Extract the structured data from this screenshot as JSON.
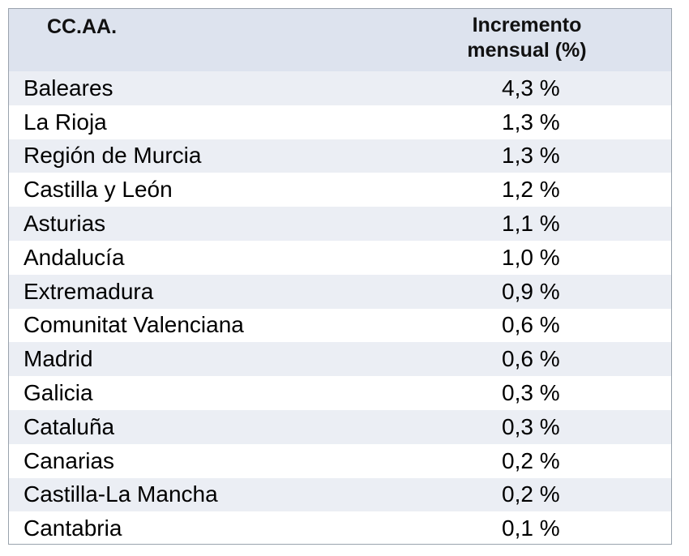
{
  "chart_data": {
    "type": "table",
    "columns": [
      "CC.AA.",
      "Incremento mensual (%)"
    ],
    "header": {
      "region_label": "CC.AA.",
      "value_label_line1": "Incremento",
      "value_label_line2": "mensual (%)"
    },
    "rows": [
      {
        "region": "Baleares",
        "value_text": "4,3 %",
        "value": 4.3
      },
      {
        "region": "La Rioja",
        "value_text": "1,3 %",
        "value": 1.3
      },
      {
        "region": "Región de Murcia",
        "value_text": "1,3 %",
        "value": 1.3
      },
      {
        "region": "Castilla y León",
        "value_text": "1,2 %",
        "value": 1.2
      },
      {
        "region": "Asturias",
        "value_text": "1,1 %",
        "value": 1.1
      },
      {
        "region": "Andalucía",
        "value_text": "1,0 %",
        "value": 1.0
      },
      {
        "region": "Extremadura",
        "value_text": "0,9 %",
        "value": 0.9
      },
      {
        "region": "Comunitat Valenciana",
        "value_text": "0,6 %",
        "value": 0.6
      },
      {
        "region": "Madrid",
        "value_text": "0,6 %",
        "value": 0.6
      },
      {
        "region": "Galicia",
        "value_text": "0,3 %",
        "value": 0.3
      },
      {
        "region": "Cataluña",
        "value_text": "0,3 %",
        "value": 0.3
      },
      {
        "region": "Canarias",
        "value_text": "0,2 %",
        "value": 0.2
      },
      {
        "region": "Castilla-La Mancha",
        "value_text": "0,2 %",
        "value": 0.2
      },
      {
        "region": "Cantabria",
        "value_text": "0,1 %",
        "value": 0.1
      }
    ]
  }
}
